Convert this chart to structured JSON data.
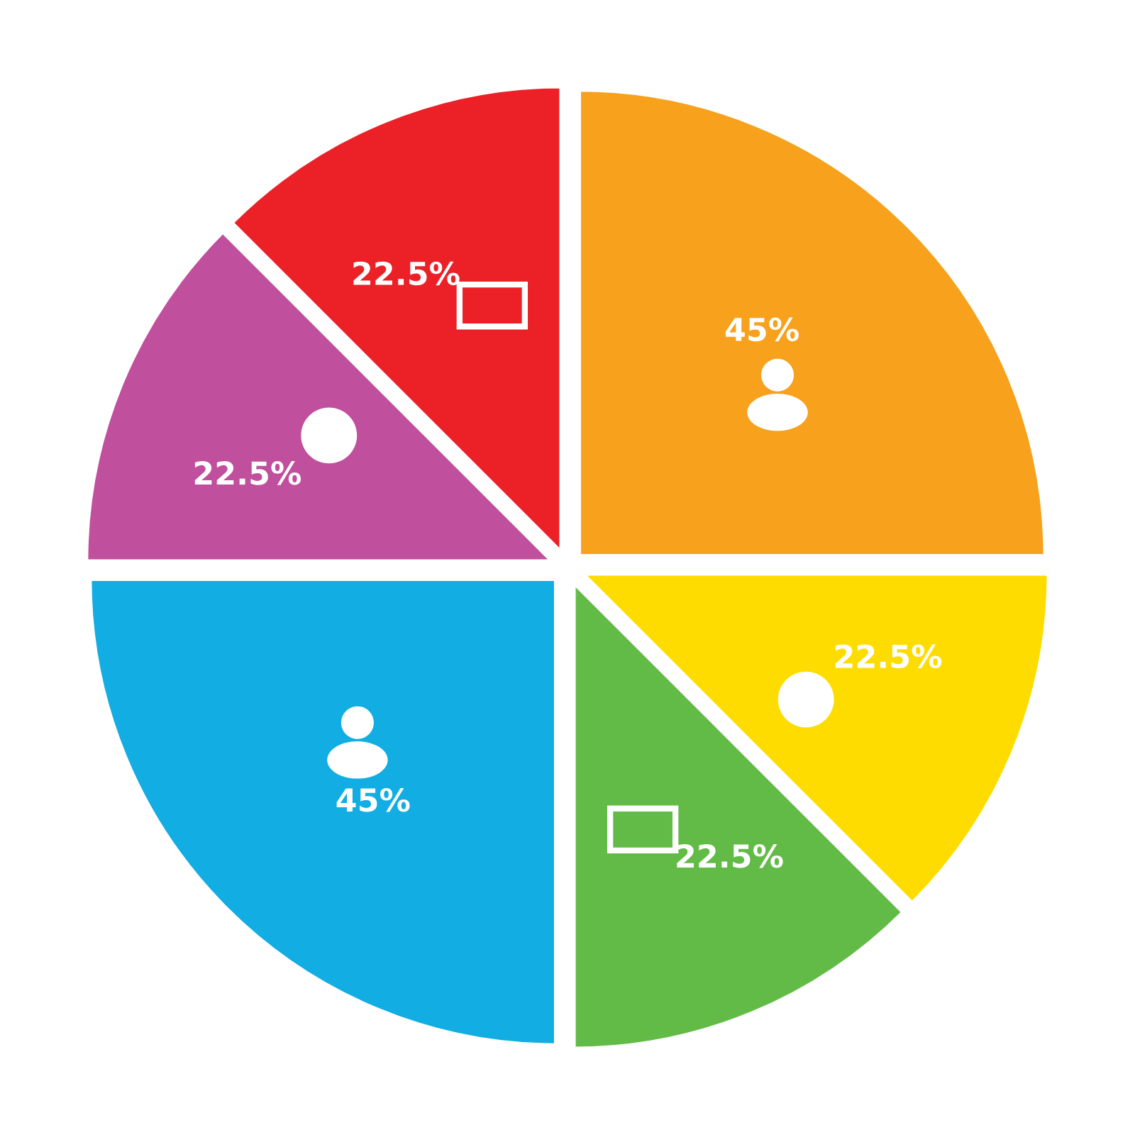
{
  "chart_data": {
    "type": "pie",
    "categories": [
      null,
      null,
      null,
      null,
      null,
      null
    ],
    "values": [
      45,
      22.5,
      22.5,
      45,
      22.5,
      22.5
    ],
    "value_labels": [
      "45%",
      "22.5%",
      "22.5%",
      "45%",
      "22.5%",
      "22.5%"
    ],
    "colors": [
      "#f7a11d",
      "#ffdc00",
      "#63bb47",
      "#12ade3",
      "#c04f9e",
      "#ec2127"
    ]
  }
}
